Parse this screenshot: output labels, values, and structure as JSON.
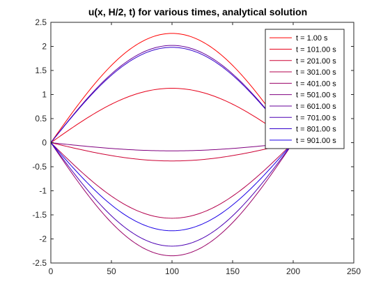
{
  "chart_data": {
    "type": "line",
    "title": "u(x, H/2, t) for various times, analytical solution",
    "xlabel": "",
    "ylabel": "",
    "xlim": [
      0,
      250
    ],
    "ylim": [
      -2.5,
      2.5
    ],
    "xticks": [
      0,
      50,
      100,
      150,
      200,
      250
    ],
    "yticks": [
      -2.5,
      -2,
      -1.5,
      -1,
      -0.5,
      0,
      0.5,
      1,
      1.5,
      2,
      2.5
    ],
    "xtick_labels": [
      "0",
      "50",
      "100",
      "150",
      "200",
      "250"
    ],
    "ytick_labels": [
      "-2.5",
      "-2",
      "-1.5",
      "-1",
      "-0.5",
      "0",
      "0.5",
      "1",
      "1.5",
      "2",
      "2.5"
    ],
    "x_domain": [
      0,
      200
    ],
    "curve_shape": "sine half-wave, amplitude at x = 100",
    "grid": false,
    "legend_position": "top-right",
    "series": [
      {
        "name": "t = 1.00 s",
        "peak": 2.27,
        "color": "#ff0000"
      },
      {
        "name": "t = 101.00 s",
        "peak": 1.13,
        "color": "#e6001a"
      },
      {
        "name": "t = 201.00 s",
        "peak": -0.38,
        "color": "#cc0033"
      },
      {
        "name": "t = 301.00 s",
        "peak": -1.57,
        "color": "#b3004c"
      },
      {
        "name": "t = 401.00 s",
        "peak": -2.35,
        "color": "#990066"
      },
      {
        "name": "t = 501.00 s",
        "peak": -0.17,
        "color": "#80007f"
      },
      {
        "name": "t = 601.00 s",
        "peak": 2.02,
        "color": "#660099"
      },
      {
        "name": "t = 701.00 s",
        "peak": -2.15,
        "color": "#4c00b3"
      },
      {
        "name": "t = 801.00 s",
        "peak": 1.98,
        "color": "#3300cc"
      },
      {
        "name": "t = 901.00 s",
        "peak": -1.83,
        "color": "#1a00e6"
      }
    ]
  }
}
